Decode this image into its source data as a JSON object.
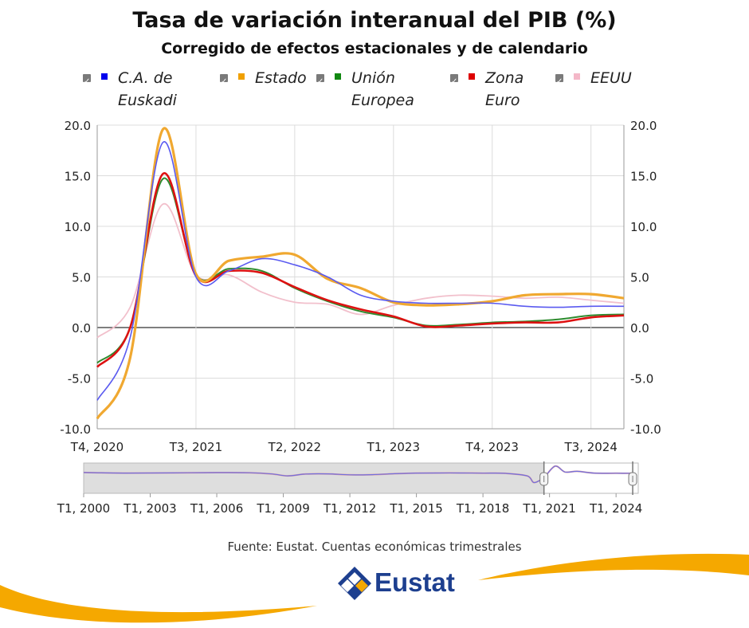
{
  "title": "Tasa de variación interanual del PIB (%)",
  "subtitle": "Corregido de efectos estacionales y de calendario",
  "legend": [
    {
      "label": "C.A. de\nEuskadi",
      "color": "#0000ee"
    },
    {
      "label": "Estado",
      "color": "#f0a000"
    },
    {
      "label": "Unión\nEuropea",
      "color": "#118811"
    },
    {
      "label": "Zona\nEuro",
      "color": "#dd0000"
    },
    {
      "label": "EEUU",
      "color": "#f4b8c8"
    }
  ],
  "source": "Fuente: Eustat. Cuentas económicas trimestrales",
  "logo_text": "Eustat",
  "colors": {
    "euskadi": "#5a5af0",
    "estado": "#f0a830",
    "ue": "#2e8b2e",
    "zona": "#dd1111",
    "eeuu": "#f2c0cc",
    "accent_orange": "#f5a800",
    "logo_blue": "#1d3f8f"
  },
  "chart_data": {
    "type": "line",
    "title": "Tasa de variación interanual del PIB (%)",
    "subtitle": "Corregido de efectos estacionales y de calendario",
    "x": [
      "T4, 2020",
      "T1, 2021",
      "T2, 2021",
      "T3, 2021",
      "T4, 2021",
      "T1, 2022",
      "T2, 2022",
      "T3, 2022",
      "T4, 2022",
      "T1, 2023",
      "T2, 2023",
      "T3, 2023",
      "T4, 2023",
      "T1, 2024",
      "T2, 2024",
      "T3, 2024",
      "T4, 2024"
    ],
    "x_tick_labels": [
      "T4, 2020",
      "T3, 2021",
      "T2, 2022",
      "T1, 2023",
      "T4, 2023",
      "T3, 2024"
    ],
    "ylim": [
      -10,
      20
    ],
    "y_ticks": [
      "20.0",
      "15.0",
      "10.0",
      "5.0",
      "0.0",
      "-5.0",
      "-10.0"
    ],
    "grid": true,
    "legend_position": "top",
    "series": [
      {
        "name": "C.A. de Euskadi",
        "values": [
          -7.2,
          -1.0,
          18.3,
          5.0,
          5.6,
          6.8,
          6.2,
          5.0,
          3.2,
          2.6,
          2.4,
          2.4,
          2.4,
          2.1,
          2.0,
          2.1,
          2.1
        ]
      },
      {
        "name": "Estado",
        "values": [
          -9.0,
          -3.0,
          19.6,
          5.3,
          6.6,
          7.0,
          7.2,
          4.8,
          3.9,
          2.5,
          2.2,
          2.3,
          2.6,
          3.2,
          3.3,
          3.3,
          2.9
        ]
      },
      {
        "name": "Unión Europea",
        "values": [
          -3.5,
          0.0,
          14.7,
          5.2,
          5.8,
          5.6,
          3.9,
          2.6,
          1.6,
          1.0,
          0.2,
          0.3,
          0.5,
          0.6,
          0.8,
          1.2,
          1.3
        ]
      },
      {
        "name": "Zona Euro",
        "values": [
          -3.9,
          0.0,
          15.2,
          5.1,
          5.6,
          5.4,
          4.0,
          2.7,
          1.8,
          1.1,
          0.1,
          0.2,
          0.4,
          0.5,
          0.5,
          1.0,
          1.2
        ]
      },
      {
        "name": "EEUU",
        "values": [
          -1.0,
          2.0,
          12.2,
          5.2,
          5.2,
          3.5,
          2.5,
          2.3,
          1.3,
          2.2,
          2.9,
          3.2,
          3.1,
          2.9,
          3.0,
          2.7,
          2.4
        ]
      }
    ],
    "navigator": {
      "x_tick_labels": [
        "T1, 2000",
        "T1, 2003",
        "T1, 2006",
        "T1, 2009",
        "T1, 2012",
        "T1, 2015",
        "T1, 2018",
        "T1, 2021",
        "T1, 2024"
      ],
      "x_range": [
        2000.0,
        2025.0
      ],
      "selected_range": [
        2020.75,
        2024.75
      ],
      "values": [
        [
          2000,
          3.8
        ],
        [
          2002,
          2.5
        ],
        [
          2004,
          3.0
        ],
        [
          2006,
          3.6
        ],
        [
          2007.5,
          3.3
        ],
        [
          2008.5,
          0.5
        ],
        [
          2009.2,
          -3.8
        ],
        [
          2010,
          0.3
        ],
        [
          2011,
          0.8
        ],
        [
          2012,
          -1.5
        ],
        [
          2013,
          -1.0
        ],
        [
          2014,
          1.0
        ],
        [
          2015,
          2.5
        ],
        [
          2016,
          2.8
        ],
        [
          2017,
          2.8
        ],
        [
          2018,
          2.4
        ],
        [
          2019,
          2.0
        ],
        [
          2020,
          -4.0
        ],
        [
          2020.3,
          -19.0
        ],
        [
          2020.75,
          -7.2
        ],
        [
          2021.25,
          18.3
        ],
        [
          2021.7,
          5.0
        ],
        [
          2022.25,
          6.5
        ],
        [
          2023,
          2.6
        ],
        [
          2024,
          2.1
        ],
        [
          2024.75,
          2.1
        ]
      ]
    }
  }
}
